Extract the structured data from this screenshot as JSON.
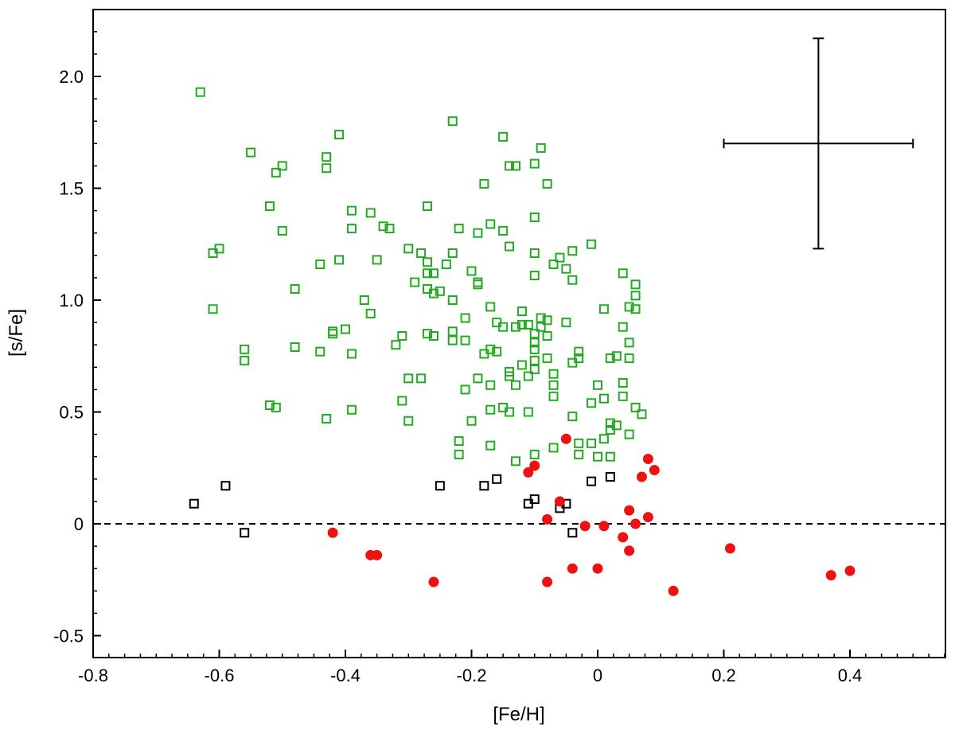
{
  "chart_data": {
    "type": "scatter",
    "title": "",
    "xlabel": "[Fe/H]",
    "ylabel": "[s/Fe]",
    "xlim": [
      -0.8,
      0.55
    ],
    "ylim": [
      -0.6,
      2.3
    ],
    "xticks": [
      -0.8,
      -0.6,
      -0.4,
      -0.2,
      0,
      0.2,
      0.4
    ],
    "xtick_labels": [
      "-0.8",
      "-0.6",
      "-0.4",
      "-0.2",
      "0",
      "0.2",
      "0.4"
    ],
    "yticks": [
      -0.5,
      0,
      0.5,
      1.0,
      1.5,
      2.0
    ],
    "ytick_labels": [
      "-0.5",
      "0",
      "0.5",
      "1.0",
      "1.5",
      "2.0"
    ],
    "x_minor_step": 0.025,
    "y_minor_step": 0.1,
    "reference_line": {
      "y": 0,
      "style": "dashed"
    },
    "error_bar": {
      "x": 0.35,
      "y": 1.7,
      "xerr": 0.15,
      "yerr": 0.47
    },
    "grid": false,
    "legend": "none",
    "series": [
      {
        "marker": "open-square",
        "color": "#22aa22",
        "points": [
          [
            -0.63,
            1.93
          ],
          [
            -0.55,
            1.66
          ],
          [
            -0.51,
            1.57
          ],
          [
            -0.5,
            1.6
          ],
          [
            -0.43,
            1.64
          ],
          [
            -0.43,
            1.59
          ],
          [
            -0.41,
            1.74
          ],
          [
            -0.52,
            1.42
          ],
          [
            -0.5,
            1.31
          ],
          [
            -0.61,
            1.21
          ],
          [
            -0.6,
            1.23
          ],
          [
            -0.61,
            0.96
          ],
          [
            -0.56,
            0.78
          ],
          [
            -0.56,
            0.73
          ],
          [
            -0.52,
            0.53
          ],
          [
            -0.51,
            0.52
          ],
          [
            -0.48,
            1.05
          ],
          [
            -0.48,
            0.79
          ],
          [
            -0.44,
            1.16
          ],
          [
            -0.44,
            0.77
          ],
          [
            -0.43,
            0.47
          ],
          [
            -0.42,
            0.86
          ],
          [
            -0.42,
            0.85
          ],
          [
            -0.41,
            1.18
          ],
          [
            -0.4,
            0.87
          ],
          [
            -0.39,
            1.4
          ],
          [
            -0.39,
            1.32
          ],
          [
            -0.39,
            0.76
          ],
          [
            -0.39,
            0.51
          ],
          [
            -0.37,
            1.0
          ],
          [
            -0.36,
            1.39
          ],
          [
            -0.36,
            0.94
          ],
          [
            -0.35,
            1.18
          ],
          [
            -0.34,
            1.33
          ],
          [
            -0.33,
            1.32
          ],
          [
            -0.32,
            0.8
          ],
          [
            -0.31,
            0.84
          ],
          [
            -0.31,
            0.55
          ],
          [
            -0.3,
            1.23
          ],
          [
            -0.3,
            0.65
          ],
          [
            -0.3,
            0.46
          ],
          [
            -0.29,
            1.08
          ],
          [
            -0.28,
            1.21
          ],
          [
            -0.28,
            0.65
          ],
          [
            -0.27,
            1.42
          ],
          [
            -0.27,
            1.17
          ],
          [
            -0.27,
            1.12
          ],
          [
            -0.27,
            1.05
          ],
          [
            -0.27,
            0.85
          ],
          [
            -0.26,
            1.12
          ],
          [
            -0.26,
            1.03
          ],
          [
            -0.26,
            0.84
          ],
          [
            -0.25,
            1.04
          ],
          [
            -0.24,
            1.16
          ],
          [
            -0.23,
            1.8
          ],
          [
            -0.23,
            1.21
          ],
          [
            -0.23,
            1.0
          ],
          [
            -0.23,
            0.86
          ],
          [
            -0.23,
            0.82
          ],
          [
            -0.22,
            1.32
          ],
          [
            -0.22,
            0.37
          ],
          [
            -0.22,
            0.31
          ],
          [
            -0.21,
            0.92
          ],
          [
            -0.21,
            0.82
          ],
          [
            -0.21,
            0.6
          ],
          [
            -0.2,
            1.13
          ],
          [
            -0.2,
            0.46
          ],
          [
            -0.19,
            1.3
          ],
          [
            -0.19,
            1.08
          ],
          [
            -0.19,
            1.07
          ],
          [
            -0.19,
            0.65
          ],
          [
            -0.18,
            1.52
          ],
          [
            -0.18,
            0.76
          ],
          [
            -0.17,
            1.34
          ],
          [
            -0.17,
            0.97
          ],
          [
            -0.17,
            0.78
          ],
          [
            -0.17,
            0.62
          ],
          [
            -0.17,
            0.51
          ],
          [
            -0.17,
            0.35
          ],
          [
            -0.16,
            0.9
          ],
          [
            -0.16,
            0.77
          ],
          [
            -0.15,
            1.73
          ],
          [
            -0.15,
            1.31
          ],
          [
            -0.15,
            0.88
          ],
          [
            -0.15,
            0.52
          ],
          [
            -0.14,
            1.6
          ],
          [
            -0.14,
            1.24
          ],
          [
            -0.14,
            0.68
          ],
          [
            -0.14,
            0.66
          ],
          [
            -0.14,
            0.5
          ],
          [
            -0.13,
            1.6
          ],
          [
            -0.13,
            0.88
          ],
          [
            -0.13,
            0.62
          ],
          [
            -0.13,
            0.28
          ],
          [
            -0.12,
            0.95
          ],
          [
            -0.12,
            0.89
          ],
          [
            -0.12,
            0.71
          ],
          [
            -0.11,
            0.89
          ],
          [
            -0.11,
            0.66
          ],
          [
            -0.11,
            0.5
          ],
          [
            -0.1,
            1.61
          ],
          [
            -0.1,
            1.37
          ],
          [
            -0.1,
            1.21
          ],
          [
            -0.1,
            1.11
          ],
          [
            -0.1,
            0.85
          ],
          [
            -0.1,
            0.81
          ],
          [
            -0.1,
            0.78
          ],
          [
            -0.1,
            0.73
          ],
          [
            -0.1,
            0.69
          ],
          [
            -0.1,
            0.31
          ],
          [
            -0.09,
            1.68
          ],
          [
            -0.09,
            0.92
          ],
          [
            -0.09,
            0.88
          ],
          [
            -0.08,
            1.52
          ],
          [
            -0.08,
            0.91
          ],
          [
            -0.08,
            0.84
          ],
          [
            -0.08,
            0.74
          ],
          [
            -0.07,
            1.16
          ],
          [
            -0.07,
            0.67
          ],
          [
            -0.07,
            0.62
          ],
          [
            -0.07,
            0.57
          ],
          [
            -0.07,
            0.34
          ],
          [
            -0.06,
            1.19
          ],
          [
            -0.05,
            1.14
          ],
          [
            -0.05,
            0.9
          ],
          [
            -0.04,
            1.22
          ],
          [
            -0.04,
            1.09
          ],
          [
            -0.04,
            0.72
          ],
          [
            -0.04,
            0.48
          ],
          [
            -0.03,
            0.77
          ],
          [
            -0.03,
            0.74
          ],
          [
            -0.03,
            0.36
          ],
          [
            -0.03,
            0.31
          ],
          [
            -0.01,
            1.25
          ],
          [
            -0.01,
            0.36
          ],
          [
            -0.01,
            0.54
          ],
          [
            0.0,
            0.62
          ],
          [
            0.0,
            0.3
          ],
          [
            0.01,
            0.96
          ],
          [
            0.01,
            0.56
          ],
          [
            0.01,
            0.38
          ],
          [
            0.02,
            0.74
          ],
          [
            0.02,
            0.45
          ],
          [
            0.02,
            0.42
          ],
          [
            0.02,
            0.3
          ],
          [
            0.03,
            0.75
          ],
          [
            0.03,
            0.44
          ],
          [
            0.04,
            1.12
          ],
          [
            0.04,
            0.88
          ],
          [
            0.04,
            0.63
          ],
          [
            0.04,
            0.57
          ],
          [
            0.05,
            0.97
          ],
          [
            0.05,
            0.81
          ],
          [
            0.05,
            0.74
          ],
          [
            0.05,
            0.4
          ],
          [
            0.06,
            1.07
          ],
          [
            0.06,
            1.02
          ],
          [
            0.06,
            0.96
          ],
          [
            0.06,
            0.52
          ],
          [
            0.07,
            0.49
          ]
        ]
      },
      {
        "marker": "open-square",
        "color": "#000000",
        "points": [
          [
            -0.64,
            0.09
          ],
          [
            -0.59,
            0.17
          ],
          [
            -0.56,
            -0.04
          ],
          [
            -0.25,
            0.17
          ],
          [
            -0.18,
            0.17
          ],
          [
            -0.16,
            0.2
          ],
          [
            -0.11,
            0.09
          ],
          [
            -0.1,
            0.11
          ],
          [
            -0.06,
            0.07
          ],
          [
            -0.05,
            0.09
          ],
          [
            -0.04,
            -0.04
          ],
          [
            -0.01,
            0.19
          ],
          [
            0.02,
            0.21
          ]
        ]
      },
      {
        "marker": "filled-circle",
        "color": "#ee1111",
        "points": [
          [
            -0.42,
            -0.04
          ],
          [
            -0.36,
            -0.14
          ],
          [
            -0.35,
            -0.14
          ],
          [
            -0.26,
            -0.26
          ],
          [
            -0.11,
            0.23
          ],
          [
            -0.1,
            0.26
          ],
          [
            -0.08,
            0.02
          ],
          [
            -0.08,
            -0.26
          ],
          [
            -0.06,
            0.1
          ],
          [
            -0.05,
            0.38
          ],
          [
            -0.04,
            -0.2
          ],
          [
            -0.02,
            -0.01
          ],
          [
            0.0,
            -0.2
          ],
          [
            0.01,
            -0.01
          ],
          [
            0.04,
            -0.06
          ],
          [
            0.05,
            0.06
          ],
          [
            0.05,
            -0.12
          ],
          [
            0.06,
            0.0
          ],
          [
            0.07,
            0.21
          ],
          [
            0.08,
            0.29
          ],
          [
            0.08,
            0.03
          ],
          [
            0.09,
            0.24
          ],
          [
            0.12,
            -0.3
          ],
          [
            0.21,
            -0.11
          ],
          [
            0.37,
            -0.23
          ],
          [
            0.4,
            -0.21
          ]
        ]
      }
    ]
  }
}
